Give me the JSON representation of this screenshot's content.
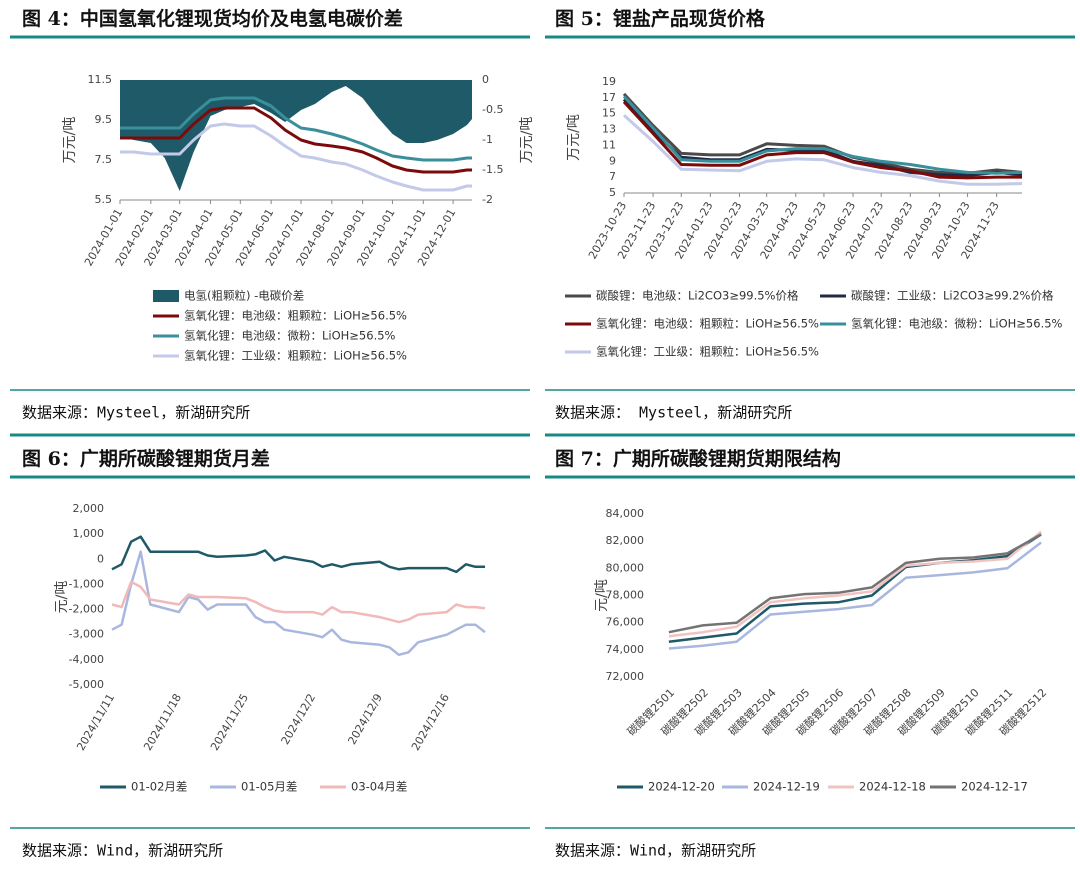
{
  "chart_data": [
    {
      "type": "line",
      "title": "图 4：中国氢氧化锂现货均价及电氢电碳价差",
      "source": "数据来源：Mysteel，新湖研究所",
      "y_label": "万元/吨",
      "y2_label": "万元/吨",
      "x": [
        "2024-01-01",
        "2024-01-15",
        "2024-02-01",
        "2024-02-15",
        "2024-03-01",
        "2024-03-15",
        "2024-04-01",
        "2024-04-15",
        "2024-05-01",
        "2024-05-15",
        "2024-06-01",
        "2024-06-15",
        "2024-07-01",
        "2024-07-15",
        "2024-08-01",
        "2024-08-15",
        "2024-09-01",
        "2024-09-15",
        "2024-10-01",
        "2024-10-15",
        "2024-11-01",
        "2024-11-15",
        "2024-12-01",
        "2024-12-15",
        "2024-12-20"
      ],
      "xlim": [
        "2024-01-01",
        "2024-12-20"
      ],
      "xticks": [
        "2024-01-01",
        "2024-02-01",
        "2024-03-01",
        "2024-04-01",
        "2024-05-01",
        "2024-06-01",
        "2024-07-01",
        "2024-08-01",
        "2024-09-01",
        "2024-10-01",
        "2024-11-01",
        "2024-12-01"
      ],
      "ylim": [
        5.5,
        11.5
      ],
      "yticks": [
        5.5,
        7.5,
        9.5,
        11.5
      ],
      "y2lim": [
        -2,
        0
      ],
      "y2ticks": [
        0,
        -0.5,
        -1,
        -1.5,
        -2
      ],
      "series": [
        {
          "name": "电氢(粗颗粒) -电碳价差",
          "type": "area",
          "axis": "y2",
          "color": "#1f5a68",
          "values": [
            -0.95,
            -1.0,
            -1.05,
            -1.3,
            -1.85,
            -1.2,
            -0.6,
            -0.5,
            -0.45,
            -0.4,
            -0.55,
            -0.7,
            -0.5,
            -0.4,
            -0.2,
            -0.1,
            -0.3,
            -0.6,
            -0.9,
            -1.05,
            -1.05,
            -1.0,
            -0.9,
            -0.75,
            -0.65
          ]
        },
        {
          "name": "氢氧化锂：电池级：粗颗粒：LiOH≥56.5%",
          "color": "#7b0a0a",
          "values": [
            8.6,
            8.6,
            8.6,
            8.6,
            8.6,
            9.3,
            10.0,
            10.1,
            10.1,
            10.1,
            9.6,
            9.0,
            8.5,
            8.3,
            8.2,
            8.1,
            7.9,
            7.6,
            7.2,
            7.0,
            6.9,
            6.9,
            6.9,
            7.0,
            7.0
          ]
        },
        {
          "name": "氢氧化锂：电池级：微粉：LiOH≥56.5%",
          "color": "#3a8f9c",
          "values": [
            9.1,
            9.1,
            9.1,
            9.1,
            9.1,
            9.8,
            10.5,
            10.6,
            10.6,
            10.6,
            10.2,
            9.6,
            9.1,
            9.0,
            8.8,
            8.6,
            8.3,
            8.0,
            7.7,
            7.6,
            7.5,
            7.5,
            7.5,
            7.6,
            7.6
          ]
        },
        {
          "name": "氢氧化锂：工业级：粗颗粒：LiOH≥56.5%",
          "color": "#c3c9e8",
          "values": [
            7.9,
            7.9,
            7.8,
            7.8,
            7.8,
            8.5,
            9.2,
            9.3,
            9.2,
            9.2,
            8.7,
            8.2,
            7.7,
            7.6,
            7.4,
            7.3,
            7.0,
            6.7,
            6.4,
            6.2,
            6.0,
            6.0,
            6.0,
            6.2,
            6.2
          ]
        }
      ]
    },
    {
      "type": "line",
      "title": "图 5：锂盐产品现货价格",
      "source": "数据来源： Mysteel，新湖研究所",
      "y_label": "万元/吨",
      "x": [
        "2023-10-23",
        "2023-11-23",
        "2023-12-23",
        "2024-01-23",
        "2024-02-23",
        "2024-03-23",
        "2024-04-23",
        "2024-05-23",
        "2024-06-23",
        "2024-07-23",
        "2024-08-23",
        "2024-09-23",
        "2024-10-23",
        "2024-11-23",
        "2024-12-20"
      ],
      "xlim": [
        "2023-10-23",
        "2024-12-20"
      ],
      "xticks": [
        "2023-10-23",
        "2023-11-23",
        "2023-12-23",
        "2024-01-23",
        "2024-02-23",
        "2024-03-23",
        "2024-04-23",
        "2024-05-23",
        "2024-06-23",
        "2024-07-23",
        "2024-08-23",
        "2024-09-23",
        "2024-10-23",
        "2024-11-23"
      ],
      "ylim": [
        5,
        19
      ],
      "yticks": [
        5,
        7,
        9,
        11,
        13,
        15,
        17,
        19
      ],
      "series": [
        {
          "name": "碳酸锂：电池级：Li2CO3≥99.5%价格",
          "color": "#4a4a4a",
          "values": [
            17.5,
            13.5,
            10.0,
            9.8,
            9.8,
            11.2,
            11.0,
            10.9,
            9.5,
            8.8,
            8.0,
            7.6,
            7.5,
            7.9,
            7.6
          ]
        },
        {
          "name": "碳酸锂：工业级：Li2CO3≥99.2%价格",
          "color": "#1f2a44",
          "values": [
            16.8,
            12.8,
            9.5,
            9.2,
            9.2,
            10.5,
            10.4,
            10.4,
            9.0,
            8.5,
            7.6,
            7.3,
            7.2,
            7.6,
            7.3
          ]
        },
        {
          "name": "氢氧化锂：电池级：粗颗粒：LiOH≥56.5%",
          "color": "#7b0a0a",
          "values": [
            16.5,
            12.5,
            8.6,
            8.5,
            8.5,
            9.8,
            10.1,
            10.1,
            8.9,
            8.2,
            7.8,
            7.0,
            6.9,
            7.0,
            7.0
          ]
        },
        {
          "name": "氢氧化锂：电池级：微粉：LiOH≥56.5%",
          "color": "#3a8f9c",
          "values": [
            17.2,
            13.2,
            9.2,
            9.0,
            9.0,
            10.3,
            10.6,
            10.6,
            9.6,
            9.0,
            8.6,
            8.0,
            7.6,
            7.5,
            7.6
          ]
        },
        {
          "name": "氢氧化锂：工业级：粗颗粒：LiOH≥56.5%",
          "color": "#c3c9e8",
          "values": [
            14.8,
            11.5,
            8.0,
            7.9,
            7.8,
            9.0,
            9.3,
            9.2,
            8.2,
            7.6,
            7.2,
            6.5,
            6.1,
            6.1,
            6.2
          ]
        }
      ]
    },
    {
      "type": "line",
      "title": "图 6：广期所碳酸锂期货月差",
      "source": "数据来源：Wind，新湖研究所",
      "y_label": "元/吨",
      "x": [
        "2024/11/11",
        "2024/11/12",
        "2024/11/13",
        "2024/11/14",
        "2024/11/15",
        "2024/11/18",
        "2024/11/19",
        "2024/11/20",
        "2024/11/21",
        "2024/11/22",
        "2024/11/25",
        "2024/11/26",
        "2024/11/27",
        "2024/11/28",
        "2024/11/29",
        "2024/12/2",
        "2024/12/3",
        "2024/12/4",
        "2024/12/5",
        "2024/12/6",
        "2024/12/9",
        "2024/12/10",
        "2024/12/11",
        "2024/12/12",
        "2024/12/13",
        "2024/12/16",
        "2024/12/17",
        "2024/12/18",
        "2024/12/19",
        "2024/12/20"
      ],
      "xlim": [
        "2024/11/11",
        "2024/12/20"
      ],
      "xticks": [
        "2024/11/11",
        "2024/11/18",
        "2024/11/25",
        "2024/12/2",
        "2024/12/9",
        "2024/12/16"
      ],
      "ylim": [
        -5000,
        2000
      ],
      "yticks": [
        {
          "value": 2000,
          "label": "2,000"
        },
        {
          "value": 1000,
          "label": "1,000"
        },
        0,
        {
          "value": -1000,
          "label": "-1,000"
        },
        {
          "value": -2000,
          "label": "-2,000"
        },
        {
          "value": -3000,
          "label": "-3,000"
        },
        {
          "value": -4000,
          "label": "-4,000"
        },
        {
          "value": -5000,
          "label": "-5,000"
        }
      ],
      "series": [
        {
          "name": "01-02月差",
          "color": "#1f5a68",
          "values": [
            -400,
            -200,
            700,
            900,
            300,
            300,
            300,
            300,
            150,
            100,
            150,
            200,
            350,
            -50,
            100,
            -100,
            -300,
            -200,
            -300,
            -200,
            -100,
            -300,
            -400,
            -350,
            -350,
            -350,
            -500,
            -200,
            -300,
            -300
          ]
        },
        {
          "name": "01-05月差",
          "color": "#a9b7df",
          "values": [
            -2800,
            -2600,
            -1000,
            300,
            -1800,
            -2100,
            -1500,
            -1600,
            -2000,
            -1800,
            -1800,
            -2300,
            -2500,
            -2500,
            -2800,
            -3000,
            -3100,
            -2800,
            -3200,
            -3300,
            -3400,
            -3500,
            -3800,
            -3700,
            -3300,
            -3000,
            -2800,
            -2600,
            -2600,
            -2900
          ]
        },
        {
          "name": "03-04月差",
          "color": "#f1b9b9",
          "values": [
            -1800,
            -1900,
            -900,
            -1100,
            -1600,
            -1800,
            -1400,
            -1500,
            -1500,
            -1500,
            -1550,
            -1700,
            -1900,
            -2050,
            -2100,
            -2100,
            -2200,
            -1900,
            -2100,
            -2100,
            -2300,
            -2400,
            -2500,
            -2400,
            -2200,
            -2100,
            -1800,
            -1900,
            -1900,
            -1950
          ]
        }
      ]
    },
    {
      "type": "line",
      "title": "图 7：广期所碳酸锂期货期限结构",
      "source": "数据来源：Wind，新湖研究所",
      "y_label": "元/吨",
      "categories": [
        "碳酸锂2501",
        "碳酸锂2502",
        "碳酸锂2503",
        "碳酸锂2504",
        "碳酸锂2505",
        "碳酸锂2506",
        "碳酸锂2507",
        "碳酸锂2508",
        "碳酸锂2509",
        "碳酸锂2510",
        "碳酸锂2511",
        "碳酸锂2512"
      ],
      "ylim": [
        72000,
        84000
      ],
      "yticks": [
        {
          "value": 84000,
          "label": "84,000"
        },
        {
          "value": 82000,
          "label": "82,000"
        },
        {
          "value": 80000,
          "label": "80,000"
        },
        {
          "value": 78000,
          "label": "78,000"
        },
        {
          "value": 76000,
          "label": "76,000"
        },
        {
          "value": 74000,
          "label": "74,000"
        },
        {
          "value": 72000,
          "label": "72,000"
        }
      ],
      "series": [
        {
          "name": "2024-12-20",
          "color": "#1f5a68",
          "values": [
            74600,
            74900,
            75200,
            77200,
            77400,
            77500,
            78000,
            80100,
            80400,
            80600,
            80900,
            82500
          ]
        },
        {
          "name": "2024-12-19",
          "color": "#a9b7df",
          "values": [
            74100,
            74300,
            74600,
            76600,
            76800,
            77000,
            77300,
            79300,
            79500,
            79700,
            80000,
            81900
          ]
        },
        {
          "name": "2024-12-18",
          "color": "#f2c3c3",
          "values": [
            75000,
            75300,
            75700,
            77500,
            77800,
            78000,
            78300,
            80200,
            80400,
            80500,
            80700,
            82700
          ]
        },
        {
          "name": "2024-12-17",
          "color": "#737373",
          "values": [
            75300,
            75800,
            76000,
            77800,
            78100,
            78200,
            78600,
            80400,
            80700,
            80800,
            81100,
            82500
          ]
        }
      ]
    }
  ]
}
